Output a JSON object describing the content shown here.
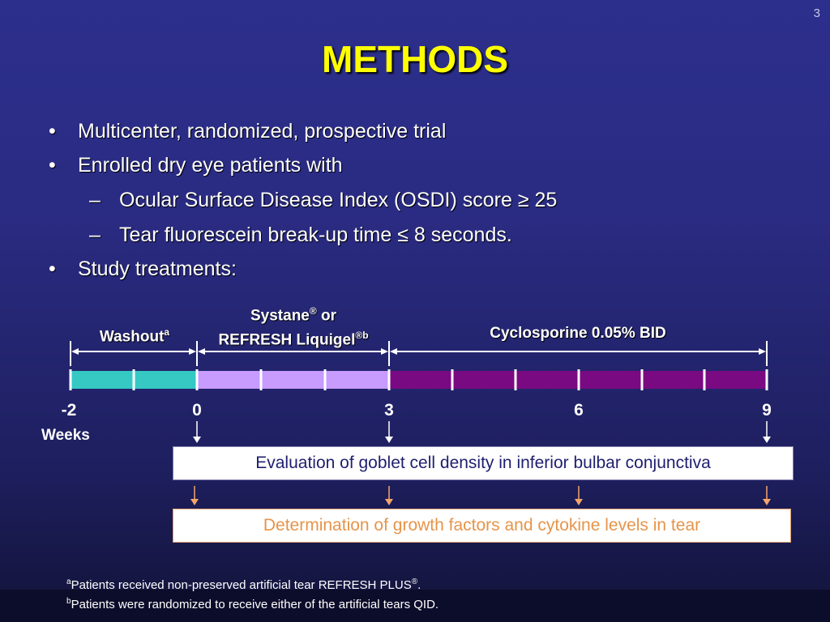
{
  "slide_number": "3",
  "title": "METHODS",
  "bullets": [
    {
      "marker": "•",
      "text": "Multicenter, randomized, prospective trial"
    },
    {
      "marker": "•",
      "text": "Enrolled dry eye patients with"
    },
    {
      "marker": "–",
      "text": "Ocular Surface Disease Index (OSDI) score ≥ 25"
    },
    {
      "marker": "–",
      "text": "Tear fluorescein break-up time ≤ 8 seconds."
    },
    {
      "marker": "•",
      "text": "Study treatments:"
    }
  ],
  "timeline": {
    "phases": [
      {
        "label": "Washout",
        "sup": "a",
        "color": "#36c9c4"
      },
      {
        "label_line1": "Systane",
        "sup1": "®",
        "label_line1_suffix": " or",
        "label_line2": "REFRESH Liquigel",
        "sup2": "®b",
        "color": "#c89bff"
      },
      {
        "label": "Cyclosporine 0.05% BID",
        "color": "#7a0a82"
      }
    ],
    "weeks": [
      "-2",
      "0",
      "3",
      "6",
      "9"
    ],
    "weeks_label": "Weeks"
  },
  "evaluation_box": "Evaluation of goblet cell density in inferior bulbar conjunctiva",
  "determination_box": "Determination of growth factors and cytokine levels in tear",
  "footnotes": [
    {
      "sup": "a",
      "text": "Patients received non-preserved artificial tear REFRESH PLUS",
      "sup_end": "®",
      "end": "."
    },
    {
      "sup": "b",
      "text": "Patients were randomized to receive either of the artificial tears QID."
    }
  ]
}
